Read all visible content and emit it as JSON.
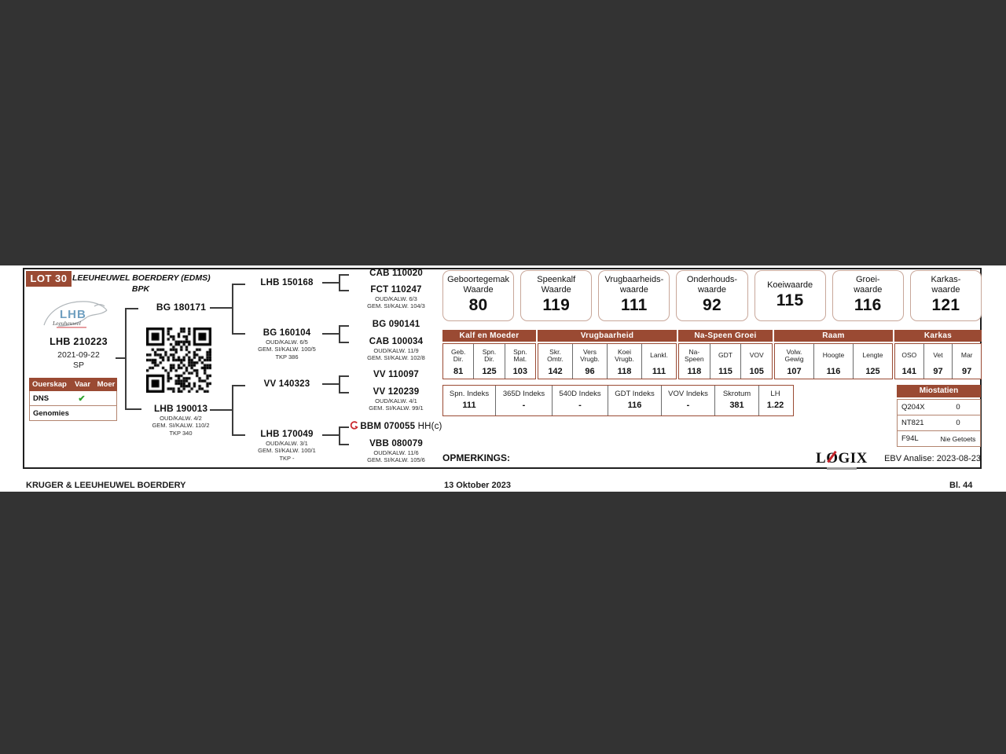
{
  "colors": {
    "brand_brown": "#9a4a33",
    "band_gray": "#333333",
    "value_box_border": "#c8a79a",
    "check_green": "#2ea32e",
    "logo_blue": "#6f9fc0",
    "accent_red": "#c9252c"
  },
  "lot": {
    "label": "LOT 30"
  },
  "breeder": {
    "line1": "LEEUHEUWEL BOERDERY (EDMS)",
    "line2": "BPK"
  },
  "logo": {
    "text": "LHB",
    "script": "Leeuheuwel"
  },
  "animal": {
    "id": "LHB 210223",
    "birth_date": "2021-09-22",
    "code": "SP"
  },
  "ouerskap": {
    "headers": [
      "Ouerskap",
      "Vaar",
      "Moer"
    ],
    "rows": [
      {
        "label": "DNS",
        "vaar": "✔",
        "moer": ""
      },
      {
        "label": "Genomies",
        "vaar": "",
        "moer": ""
      }
    ]
  },
  "pedigree": {
    "sire": {
      "id": "BG 180171"
    },
    "dam": {
      "id": "LHB 190013",
      "lines": [
        "OUD/KALW. 4/2",
        "GEM. SI/KALW. 110/2",
        "TKP 340"
      ]
    },
    "gen2": [
      {
        "id": "LHB 150168",
        "lines": []
      },
      {
        "id": "BG 160104",
        "lines": [
          "OUD/KALW. 6/5",
          "GEM. SI/KALW. 100/5",
          "TKP 386"
        ]
      },
      {
        "id": "VV 140323",
        "lines": []
      },
      {
        "id": "LHB 170049",
        "lines": [
          "OUD/KALW. 3/1",
          "GEM. SI/KALW. 100/1",
          "TKP -"
        ]
      }
    ],
    "gen3": [
      {
        "id": "CAB 110020",
        "lines": []
      },
      {
        "id": "FCT 110247",
        "lines": [
          "OUD/KALW. 6/3",
          "GEM. SI/KALW. 104/3"
        ]
      },
      {
        "id": "BG 090141",
        "lines": []
      },
      {
        "id": "CAB 100034",
        "lines": [
          "OUD/KALW. 11/9",
          "GEM. SI/KALW. 102/8"
        ]
      },
      {
        "id": "VV 110097",
        "lines": []
      },
      {
        "id": "VV 120239",
        "lines": [
          "OUD/KALW. 4/1",
          "GEM. SI/KALW. 99/1"
        ]
      },
      {
        "id": "BBM 070055",
        "suffix": " HH(c)",
        "icon": "red-brand-icon",
        "lines": []
      },
      {
        "id": "VBB 080079",
        "lines": [
          "OUD/KALW. 11/6",
          "GEM. SI/KALW. 105/6"
        ]
      }
    ]
  },
  "value_boxes": [
    {
      "title": [
        "Geboortegemak",
        "Waarde"
      ],
      "value": "80"
    },
    {
      "title": [
        "Speenkalf",
        "Waarde"
      ],
      "value": "119"
    },
    {
      "title": [
        "Vrugbaarheids-",
        "waarde"
      ],
      "value": "111"
    },
    {
      "title": [
        "Onderhouds-",
        "waarde"
      ],
      "value": "92"
    },
    {
      "title": [
        "Koeiwaarde"
      ],
      "value": "115"
    },
    {
      "title": [
        "Groei-",
        "waarde"
      ],
      "value": "116"
    },
    {
      "title": [
        "Karkas-",
        "waarde"
      ],
      "value": "121"
    }
  ],
  "stats_groups": [
    {
      "name": "Kalf en Moeder",
      "cells": [
        {
          "head": [
            "Geb.",
            "Dir."
          ],
          "value": "81"
        },
        {
          "head": [
            "Spn.",
            "Dir."
          ],
          "value": "125"
        },
        {
          "head": [
            "Spn.",
            "Mat."
          ],
          "value": "103"
        }
      ]
    },
    {
      "name": "Vrugbaarheid",
      "cells": [
        {
          "head": [
            "Skr.",
            "Omtr."
          ],
          "value": "142"
        },
        {
          "head": [
            "Vers",
            "Vrugb."
          ],
          "value": "96"
        },
        {
          "head": [
            "Koei",
            "Vrugb."
          ],
          "value": "118"
        },
        {
          "head": [
            "Lankl."
          ],
          "value": "111"
        }
      ]
    },
    {
      "name": "Na-Speen Groei",
      "cells": [
        {
          "head": [
            "Na-",
            "Speen"
          ],
          "value": "118"
        },
        {
          "head": [
            "GDT"
          ],
          "value": "115"
        },
        {
          "head": [
            "VOV"
          ],
          "value": "105"
        }
      ]
    },
    {
      "name": "Raam",
      "cells": [
        {
          "head": [
            "Volw.",
            "Gewig"
          ],
          "value": "107"
        },
        {
          "head": [
            "Hoogte"
          ],
          "value": "116"
        },
        {
          "head": [
            "Lengte"
          ],
          "value": "125"
        }
      ]
    },
    {
      "name": "Karkas",
      "cells": [
        {
          "head": [
            "OSO"
          ],
          "value": "141"
        },
        {
          "head": [
            "Vet"
          ],
          "value": "97"
        },
        {
          "head": [
            "Mar"
          ],
          "value": "97"
        }
      ]
    }
  ],
  "index_row": [
    {
      "label": "Spn. Indeks",
      "value": "111"
    },
    {
      "label": "365D Indeks",
      "value": "-"
    },
    {
      "label": "540D Indeks",
      "value": "-"
    },
    {
      "label": "GDT Indeks",
      "value": "116"
    },
    {
      "label": "VOV Indeks",
      "value": "-"
    },
    {
      "label": "Skrotum",
      "value": "381"
    },
    {
      "label": "LH",
      "value": "1.22"
    }
  ],
  "miostatien": {
    "title": "Miostatien",
    "rows": [
      {
        "label": "Q204X",
        "value": "0"
      },
      {
        "label": "NT821",
        "value": "0"
      },
      {
        "label": "F94L",
        "value": "Nie Getoets"
      }
    ]
  },
  "notes": {
    "opmerkings": "OPMERKINGS:",
    "ebv_analise": "EBV Analise: 2023-08-23"
  },
  "branding": {
    "logix": "LOGIX"
  },
  "footer": {
    "left": "KRUGER & LEEUHEUWEL BOERDERY",
    "center": "13 Oktober 2023",
    "right": "Bl. 44"
  }
}
